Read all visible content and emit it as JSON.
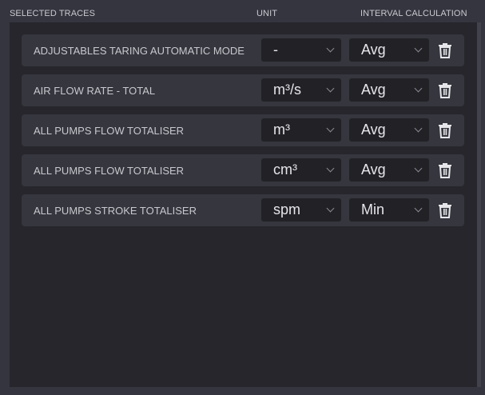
{
  "headers": {
    "traces": "SELECTED TRACES",
    "unit": "UNIT",
    "interval": "INTERVAL CALCULATION"
  },
  "rows": [
    {
      "name": "ADJUSTABLES TARING AUTOMATIC MODE",
      "unit": "-",
      "interval": "Avg"
    },
    {
      "name": "AIR FLOW RATE - TOTAL",
      "unit": "m³/s",
      "interval": "Avg"
    },
    {
      "name": "ALL PUMPS FLOW TOTALISER",
      "unit": "m³",
      "interval": "Avg"
    },
    {
      "name": "ALL PUMPS FLOW TOTALISER",
      "unit": "cm³",
      "interval": "Avg"
    },
    {
      "name": "ALL PUMPS STROKE TOTALISER",
      "unit": "spm",
      "interval": "Min"
    }
  ],
  "icons": {
    "delete": "trash-icon",
    "dropdown": "chevron-down-icon"
  }
}
